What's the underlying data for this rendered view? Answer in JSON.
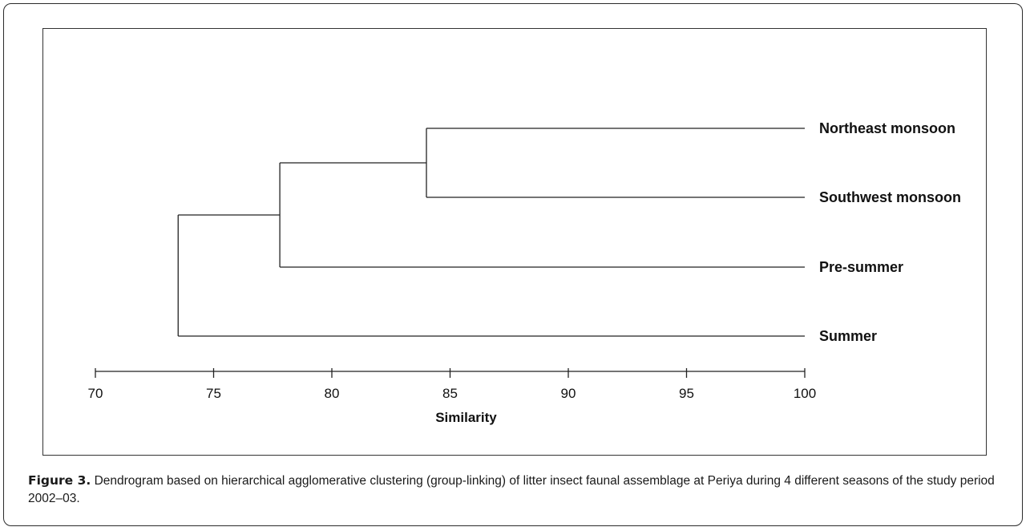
{
  "figure": {
    "label": "Figure 3.",
    "caption": "Dendrogram based on hierarchical agglomerative clustering (group-linking) of litter insect faunal assemblage at Periya during 4 different seasons of the study period 2002–03."
  },
  "chart_data": {
    "type": "dendrogram",
    "title": "",
    "xlabel": "Similarity",
    "ylabel": "",
    "xlim": [
      70,
      100
    ],
    "xticks": [
      70,
      75,
      80,
      85,
      90,
      95,
      100
    ],
    "orientation": "leaves-right",
    "leaves": [
      "Northeast monsoon",
      "Southwest monsoon",
      "Pre-summer",
      "Summer"
    ],
    "merges": [
      {
        "children": [
          "Northeast monsoon",
          "Southwest monsoon"
        ],
        "similarity": 84.0
      },
      {
        "children": [
          "Northeast monsoon + Southwest monsoon",
          "Pre-summer"
        ],
        "similarity": 77.8
      },
      {
        "children": [
          "Northeast monsoon + Southwest monsoon + Pre-summer",
          "Summer"
        ],
        "similarity": 73.5
      }
    ],
    "grid": false,
    "legend": "none"
  }
}
